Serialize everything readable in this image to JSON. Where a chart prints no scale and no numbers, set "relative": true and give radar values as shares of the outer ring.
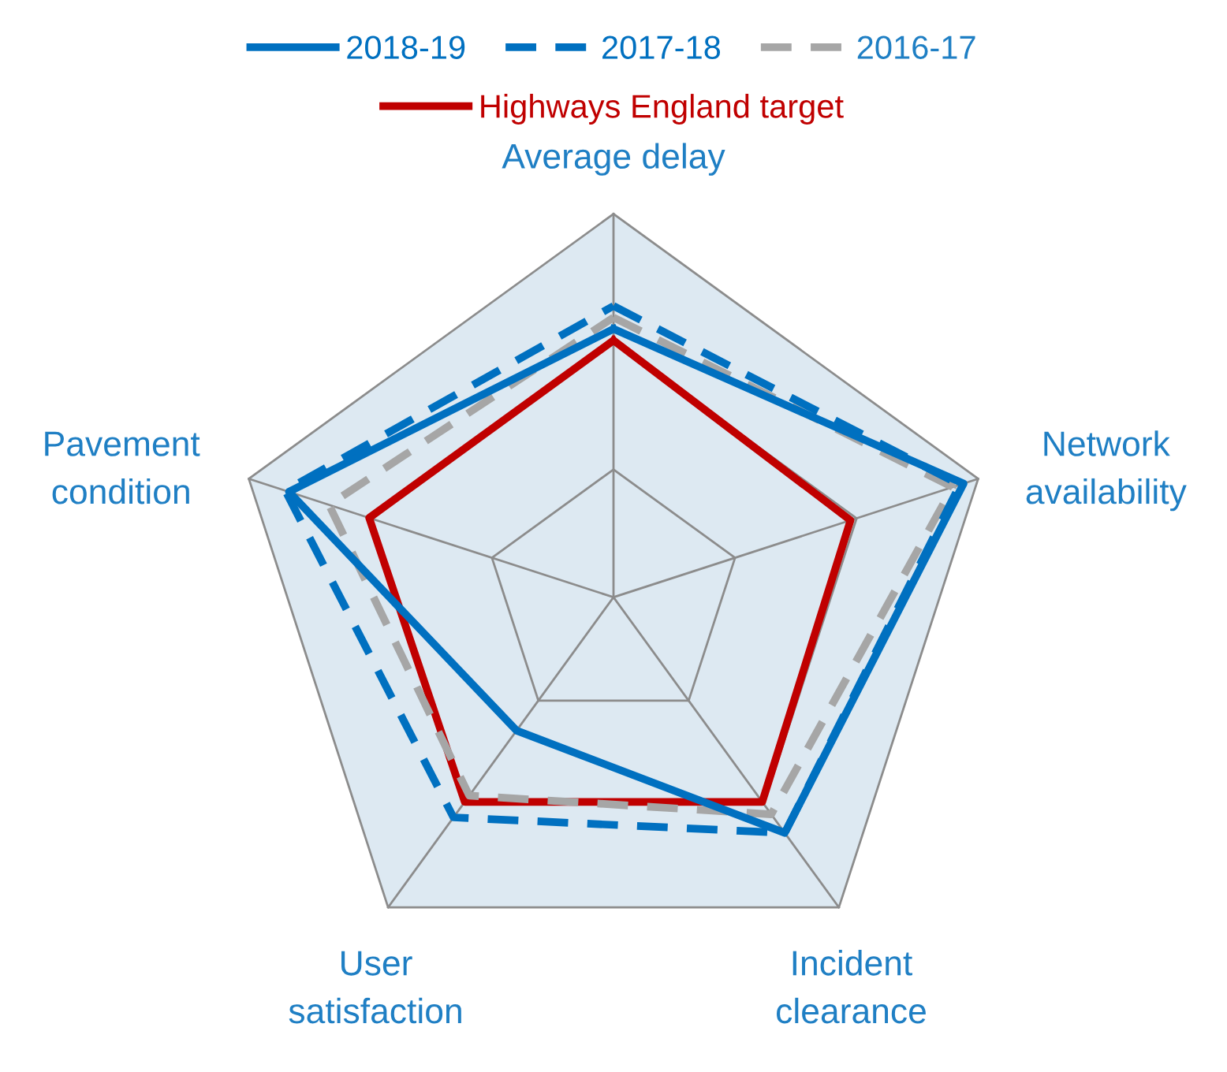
{
  "chart_data": {
    "type": "radar",
    "relative": true,
    "categories": [
      "Average delay",
      "Network\navailability",
      "Incident\nclearance",
      "User\nsatisfaction",
      "Pavement\ncondition"
    ],
    "series": [
      {
        "name": "2018-19",
        "color": "#0070c0",
        "line_style": "solid",
        "values": [
          0.7,
          0.96,
          0.76,
          0.43,
          0.89
        ]
      },
      {
        "name": "2017-18",
        "color": "#0070c0",
        "line_style": "dashed",
        "values": [
          0.76,
          0.95,
          0.76,
          0.71,
          0.9
        ]
      },
      {
        "name": "2016-17",
        "color": "#a6a6a6",
        "line_style": "dashed",
        "values": [
          0.73,
          0.93,
          0.7,
          0.64,
          0.78
        ]
      },
      {
        "name": "Highways England target",
        "color": "#c00000",
        "line_style": "solid",
        "values": [
          0.67,
          0.65,
          0.66,
          0.66,
          0.67
        ]
      }
    ],
    "legend": "top",
    "marker": "none"
  }
}
